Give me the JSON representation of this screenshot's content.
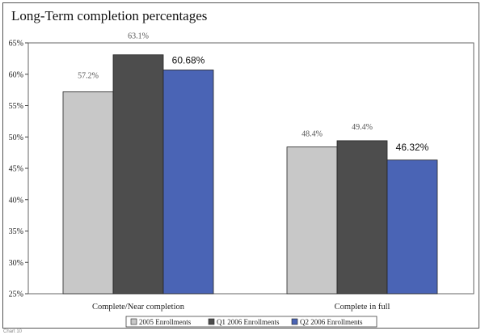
{
  "chart_data": {
    "type": "bar",
    "title": "Long-Term completion percentages",
    "categories": [
      "Complete/Near completion",
      "Complete in full"
    ],
    "series": [
      {
        "name": "2005 Enrollments",
        "values": [
          57.2,
          48.4
        ],
        "labels": [
          "57.2%",
          "48.4%"
        ],
        "color": "#c8c8c8"
      },
      {
        "name": "Q1 2006 Enrollments",
        "values": [
          63.1,
          49.4
        ],
        "labels": [
          "63.1%",
          "49.4%"
        ],
        "color": "#4d4d4d"
      },
      {
        "name": "Q2 2006 Enrollments",
        "values": [
          60.68,
          46.32
        ],
        "labels": [
          "60.68%",
          "46.32%"
        ],
        "color": "#4a64b5"
      }
    ],
    "ylim": [
      25,
      65
    ],
    "yticks": [
      "25%",
      "30%",
      "35%",
      "40%",
      "45%",
      "50%",
      "55%",
      "60%",
      "65%"
    ],
    "ytick_values": [
      25,
      30,
      35,
      40,
      45,
      50,
      55,
      60,
      65
    ],
    "legend_position": "bottom",
    "grid": false
  },
  "footer_text": "Chart 10"
}
